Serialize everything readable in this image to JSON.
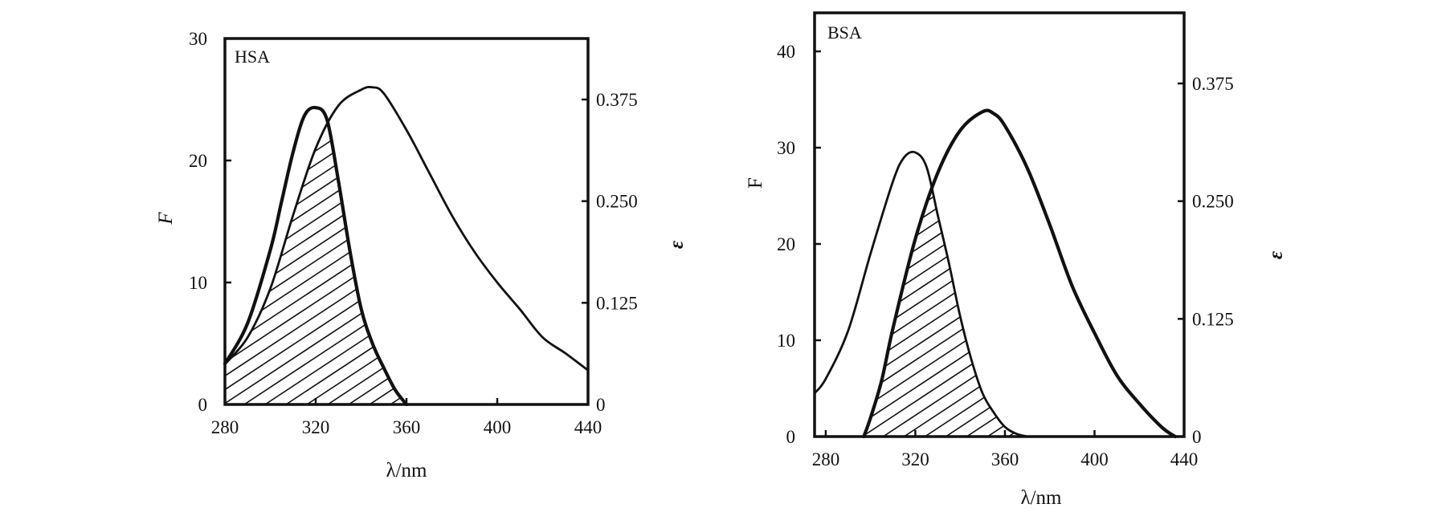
{
  "chart_data": [
    {
      "type": "line",
      "label": "HSA",
      "xlabel": "λ/nm",
      "ylabel_left": "F",
      "ylabel_right": "ε",
      "xlim": [
        280,
        440
      ],
      "ylim_left": [
        0,
        30
      ],
      "ylim_right": [
        0,
        0.45
      ],
      "xticks": [
        280,
        320,
        360,
        400,
        440
      ],
      "yticks_left": [
        0,
        10,
        20,
        30
      ],
      "yticks_right": [
        0,
        0.125,
        0.25,
        0.375
      ],
      "ytick_labels_right": [
        "0",
        "0.125",
        "0.250",
        "0.375"
      ],
      "grid": false,
      "shaded_overlap": true,
      "series": [
        {
          "axis": "right",
          "style": "bold",
          "x": [
            280,
            290,
            300,
            305,
            310,
            315,
            320,
            325,
            330,
            335,
            340,
            345,
            350,
            355,
            360
          ],
          "y": [
            0.05,
            0.1,
            0.19,
            0.25,
            0.31,
            0.355,
            0.365,
            0.35,
            0.275,
            0.19,
            0.118,
            0.075,
            0.045,
            0.018,
            0.0
          ]
        },
        {
          "axis": "left",
          "style": "normal",
          "x": [
            280,
            290,
            300,
            310,
            320,
            330,
            340,
            345,
            350,
            360,
            370,
            380,
            390,
            400,
            410,
            420,
            430,
            440
          ],
          "y": [
            3.3,
            5.5,
            9.5,
            15.5,
            21.0,
            24.5,
            25.8,
            26.0,
            25.5,
            22.5,
            19.0,
            15.5,
            12.5,
            10.0,
            7.8,
            5.5,
            4.2,
            2.8
          ]
        }
      ]
    },
    {
      "type": "line",
      "label": "BSA",
      "xlabel": "λ/nm",
      "ylabel_left": "F",
      "ylabel_right": "ε",
      "xlim": [
        275,
        440
      ],
      "ylim_left": [
        0,
        44
      ],
      "ylim_right": [
        0,
        0.45
      ],
      "xticks": [
        280,
        320,
        360,
        400,
        440
      ],
      "yticks_left": [
        0,
        10,
        20,
        30,
        40
      ],
      "yticks_right": [
        0,
        0.125,
        0.25,
        0.375
      ],
      "ytick_labels_right": [
        "0",
        "0.125",
        "0.250",
        "0.375"
      ],
      "grid": false,
      "shaded_overlap": true,
      "series": [
        {
          "axis": "left",
          "style": "normal",
          "x": [
            275,
            280,
            290,
            300,
            310,
            315,
            320,
            325,
            330,
            335,
            340,
            345,
            350,
            355,
            360,
            365,
            370
          ],
          "y": [
            4.5,
            6.0,
            11.0,
            19.0,
            26.5,
            29.0,
            29.5,
            28.0,
            23.0,
            18.0,
            12.5,
            8.0,
            4.5,
            2.5,
            1.0,
            0.3,
            0.0
          ]
        },
        {
          "axis": "right",
          "style": "bold",
          "x": [
            297,
            300,
            305,
            310,
            320,
            330,
            340,
            350,
            355,
            360,
            370,
            380,
            390,
            400,
            410,
            420,
            430,
            436
          ],
          "y": [
            0.0,
            0.02,
            0.06,
            0.115,
            0.21,
            0.28,
            0.325,
            0.345,
            0.343,
            0.33,
            0.285,
            0.225,
            0.16,
            0.11,
            0.065,
            0.035,
            0.01,
            0.0
          ]
        }
      ]
    }
  ]
}
